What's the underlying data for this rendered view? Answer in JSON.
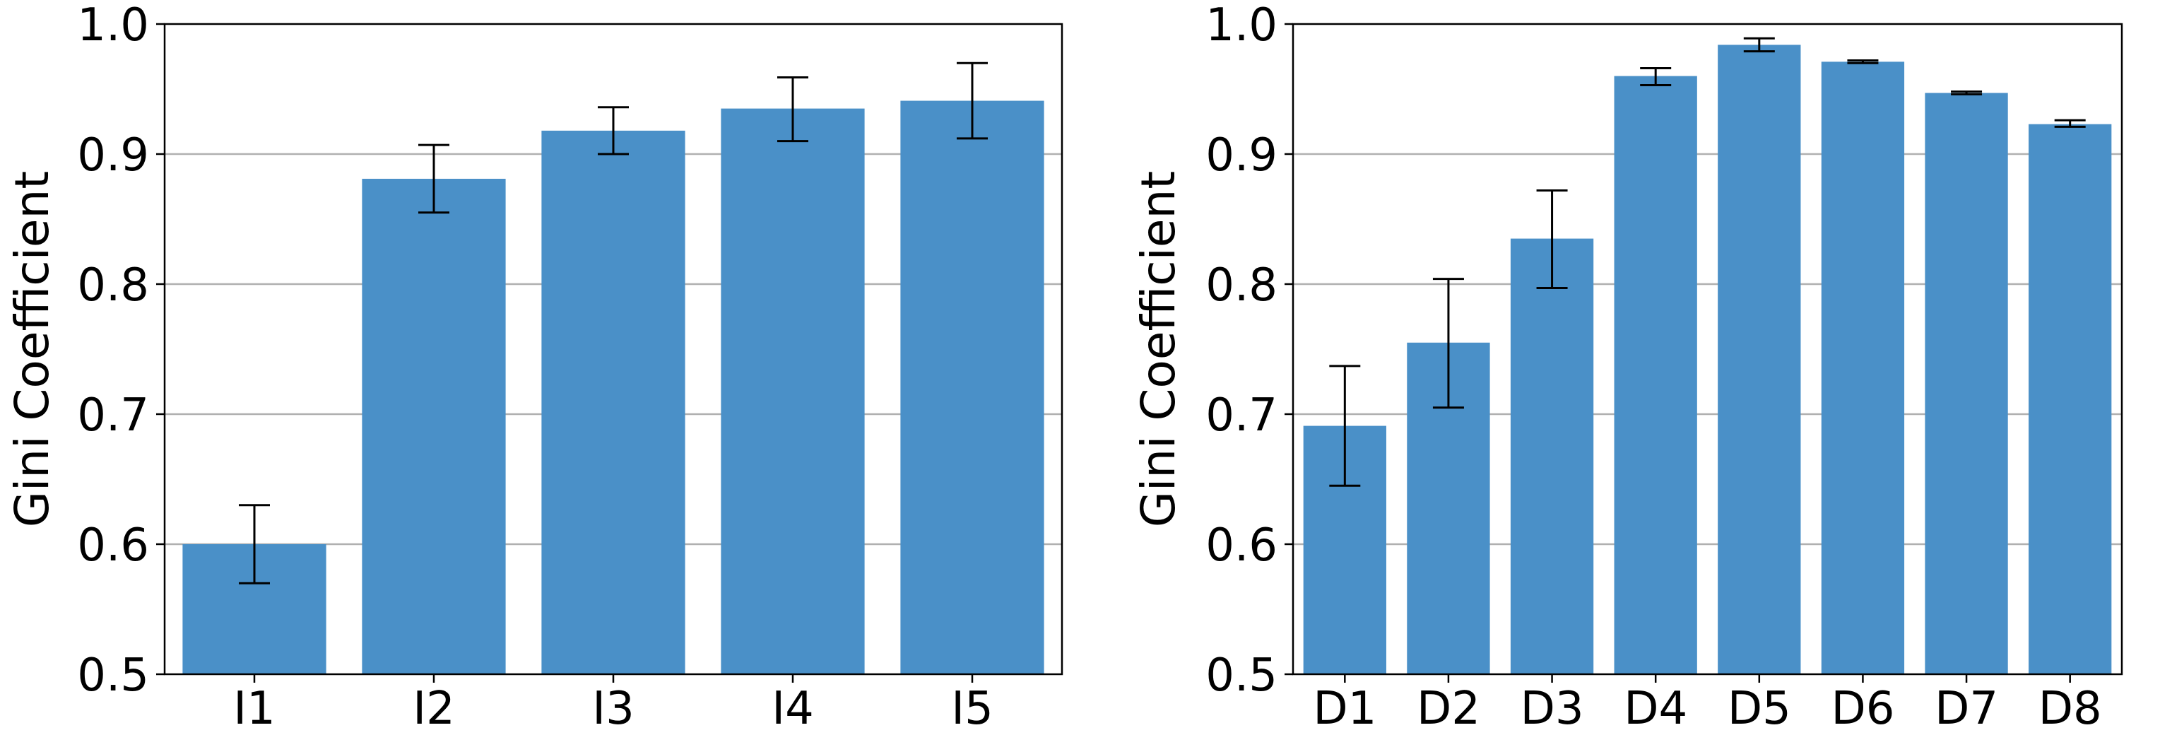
{
  "colors": {
    "bar": "#4a90c8",
    "error_bar": "#000000",
    "grid": "#b0b0b0",
    "axes": "#000000"
  },
  "chart_data": [
    {
      "type": "bar",
      "categories": [
        "I1",
        "I2",
        "I3",
        "I4",
        "I5"
      ],
      "values": [
        0.6,
        0.881,
        0.918,
        0.935,
        0.941
      ],
      "error_low": [
        0.57,
        0.855,
        0.9,
        0.91,
        0.912
      ],
      "error_high": [
        0.63,
        0.907,
        0.936,
        0.959,
        0.97
      ],
      "title": "",
      "xlabel": "",
      "ylabel": "Gini Coefficient",
      "ylim": [
        0.5,
        1.0
      ],
      "yticks": [
        "0.5",
        "0.6",
        "0.7",
        "0.8",
        "0.9",
        "1.0"
      ],
      "grid": "horizontal"
    },
    {
      "type": "bar",
      "categories": [
        "D1",
        "D2",
        "D3",
        "D4",
        "D5",
        "D6",
        "D7",
        "D8"
      ],
      "values": [
        0.691,
        0.755,
        0.835,
        0.96,
        0.984,
        0.971,
        0.947,
        0.923
      ],
      "error_low": [
        0.645,
        0.705,
        0.797,
        0.953,
        0.979,
        0.97,
        0.946,
        0.921
      ],
      "error_high": [
        0.737,
        0.804,
        0.872,
        0.966,
        0.989,
        0.972,
        0.948,
        0.926
      ],
      "title": "",
      "xlabel": "",
      "ylabel": "Gini Coefficient",
      "ylim": [
        0.5,
        1.0
      ],
      "yticks": [
        "0.5",
        "0.6",
        "0.7",
        "0.8",
        "0.9",
        "1.0"
      ],
      "grid": "horizontal"
    }
  ]
}
